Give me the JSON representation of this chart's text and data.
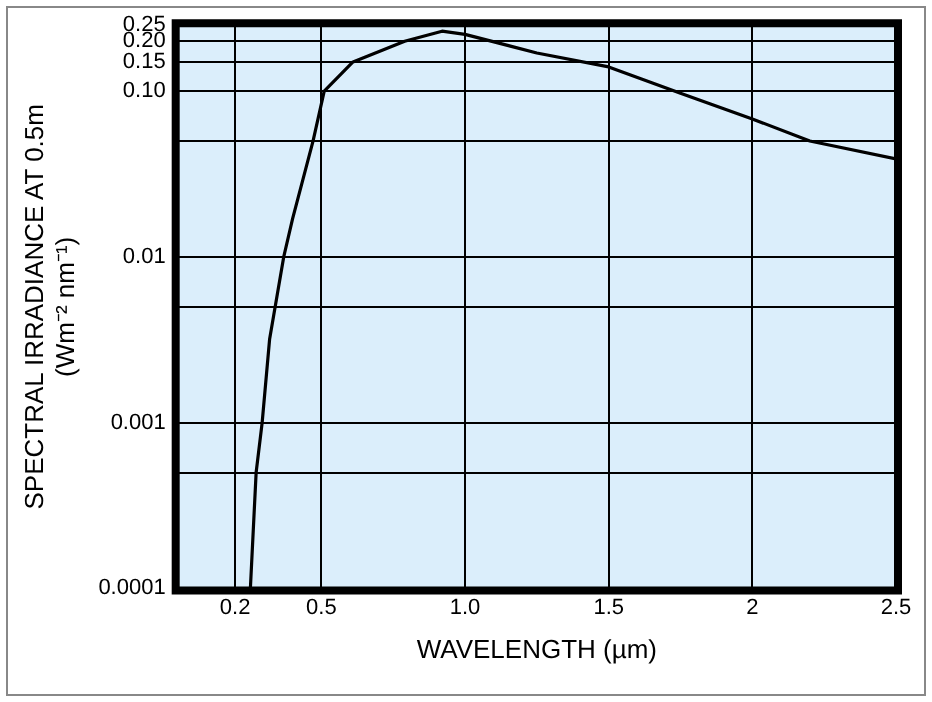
{
  "chart_data": {
    "type": "line",
    "xlabel": "WAVELENGTH (µm)",
    "ylabel": "SPECTRAL IRRADIANCE AT 0.5m\n(Wm⁻² nm⁻¹)",
    "x": [
      0.253,
      0.273,
      0.294,
      0.32,
      0.369,
      0.4,
      0.471,
      0.51,
      0.61,
      0.79,
      0.92,
      1.0,
      1.25,
      1.5,
      1.75,
      2.0,
      2.2,
      2.5
    ],
    "series": [
      {
        "color": "#000000",
        "values": [
          0.0001,
          0.0005,
          0.001,
          0.0032,
          0.01,
          0.017,
          0.05,
          0.1,
          0.15,
          0.2,
          0.23,
          0.22,
          0.17,
          0.14,
          0.097,
          0.068,
          0.05,
          0.039
        ]
      }
    ],
    "xlim": [
      0,
      2.5
    ],
    "xticks": [
      0.2,
      0.5,
      {
        "value": 1,
        "label": "1.0"
      },
      1.5,
      2,
      2.5
    ],
    "ylim": [
      0.0001,
      0.25
    ],
    "yticks": [
      0.0001,
      {
        "value": 0.0005,
        "label": null
      },
      0.001,
      {
        "value": 0.005,
        "label": null
      },
      0.01,
      {
        "value": 0.05,
        "label": null
      },
      {
        "value": 0.1,
        "label": "0.10"
      },
      0.15,
      {
        "value": 0.2,
        "label": "0.20"
      },
      0.25
    ],
    "log": "y",
    "grid": true,
    "marker": "none",
    "line_style": "solid",
    "legend": false
  }
}
